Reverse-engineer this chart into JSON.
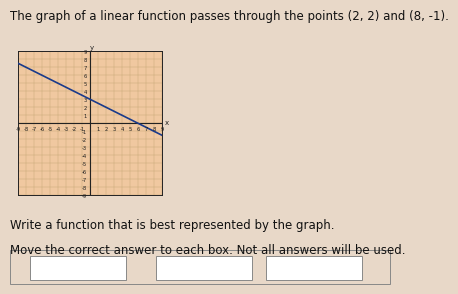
{
  "title": "The graph of a linear function passes through the points (2, 2) and (8, -1).",
  "title_fontsize": 8.5,
  "bg_color": "#e8d8c8",
  "graph_bg": "#f0c8a0",
  "grid_color": "#c8a878",
  "axis_color": "#222222",
  "line_color": "#1a3a8a",
  "point1": [
    2,
    2
  ],
  "point2": [
    8,
    -1
  ],
  "xmin": -9,
  "xmax": 9,
  "ymin": -9,
  "ymax": 9,
  "text1": "Write a function that is best represented by the graph.",
  "text2": "Move the correct answer to each box. Not all answers will be used.",
  "text_fontsize": 8.5,
  "box_color": "#ffffff",
  "box_edge": "#888888"
}
